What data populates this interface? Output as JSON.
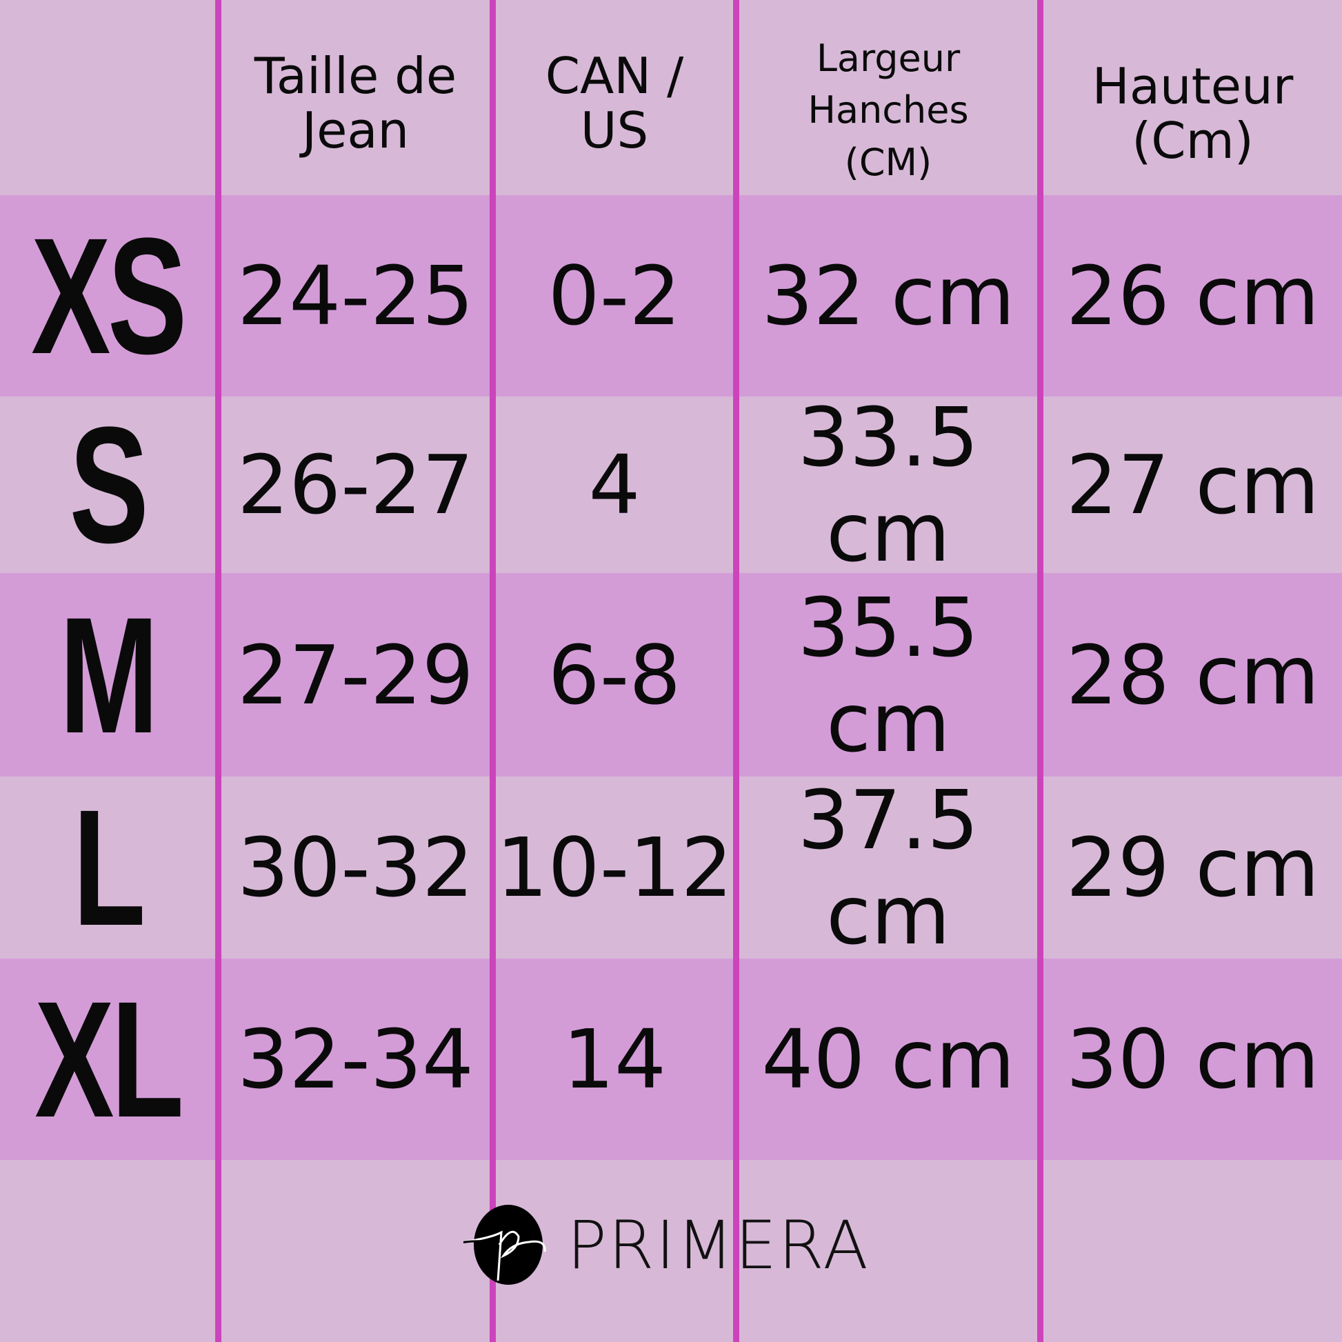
{
  "colors": {
    "light_row": "#d7b9d7",
    "dark_row": "#d39cd7",
    "divider": "#cc44bb",
    "text": "#0a0a0a"
  },
  "headers": {
    "jean": [
      "Taille de",
      "Jean"
    ],
    "can_us": [
      "CAN /",
      "US"
    ],
    "largeur": [
      "Largeur",
      "Hanches",
      "(CM)"
    ],
    "hauteur": [
      "Hauteur",
      "(Cm)"
    ]
  },
  "rows": [
    {
      "size": "XS",
      "jean": "24-25",
      "can_us": "0-2",
      "largeur": "32 cm",
      "hauteur": "26 cm"
    },
    {
      "size": "S",
      "jean": "26-27",
      "can_us": "4",
      "largeur": "33.5 cm",
      "hauteur": "27 cm"
    },
    {
      "size": "M",
      "jean": "27-29",
      "can_us": "6-8",
      "largeur": "35.5 cm",
      "hauteur": "28 cm"
    },
    {
      "size": "L",
      "jean": "30-32",
      "can_us": "10-12",
      "largeur": "37.5 cm",
      "hauteur": "29 cm"
    },
    {
      "size": "XL",
      "jean": "32-34",
      "can_us": "14",
      "largeur": "40 cm",
      "hauteur": "30 cm"
    }
  ],
  "logo": {
    "brand": "PRIMERA",
    "monogram": "p"
  }
}
